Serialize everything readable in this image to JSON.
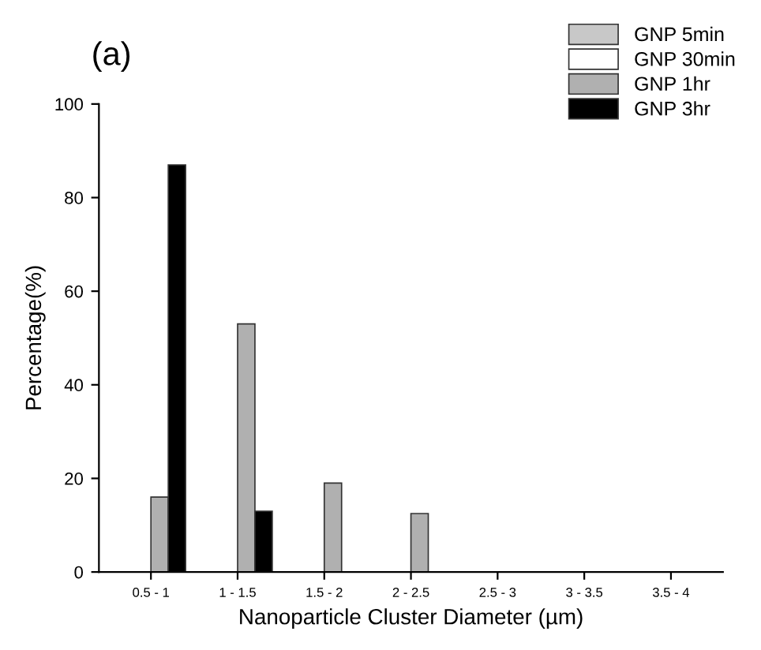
{
  "chart_data": {
    "type": "bar",
    "title": "(a)",
    "xlabel": "Nanoparticle Cluster Diameter (µm)",
    "ylabel": "Percentage(%)",
    "categories": [
      "0.5 - 1",
      "1 - 1.5",
      "1.5 - 2",
      "2 - 2.5",
      "2.5 - 3",
      "3 - 3.5",
      "3.5 - 4"
    ],
    "series": [
      {
        "name": "GNP 5min",
        "color": "#c8c8c8",
        "values": [
          null,
          null,
          null,
          null,
          null,
          null,
          null
        ]
      },
      {
        "name": "GNP 30min",
        "color": "#ffffff",
        "values": [
          null,
          null,
          null,
          null,
          null,
          null,
          null
        ]
      },
      {
        "name": "GNP 1hr",
        "color": "#b0b0b0",
        "values": [
          16,
          53,
          19,
          12.5,
          null,
          null,
          null
        ]
      },
      {
        "name": "GNP 3hr",
        "color": "#000000",
        "values": [
          87,
          13,
          null,
          null,
          null,
          null,
          null
        ]
      }
    ],
    "ylim": [
      0,
      100
    ],
    "yticks": [
      0,
      20,
      40,
      60,
      80,
      100
    ],
    "grid": false,
    "legend": "top right"
  }
}
